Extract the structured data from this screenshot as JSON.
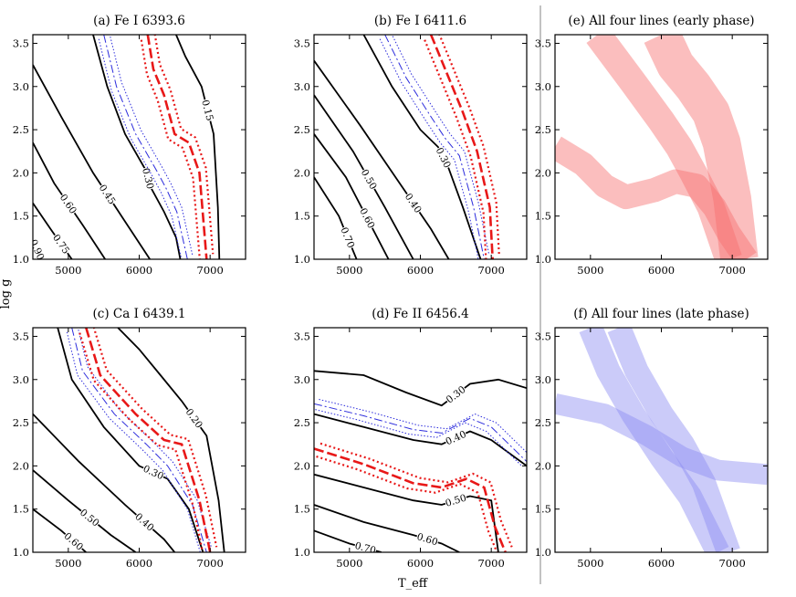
{
  "chart_data": {
    "type": "line",
    "xlabel": "T_eff",
    "ylabel": "log g",
    "xlim": [
      4500,
      7500
    ],
    "ylim": [
      1.0,
      3.6
    ],
    "x_ticks": [
      "5000",
      "6000",
      "7000"
    ],
    "y_ticks": [
      "1.0",
      "1.5",
      "2.0",
      "2.5",
      "3.0",
      "3.5"
    ],
    "panels": [
      {
        "id": "a",
        "title": "(a) Fe I 6393.6",
        "contours": [
          {
            "label": "0.90",
            "pts": [
              [
                4500,
                1.22
              ],
              [
                4620,
                1.0
              ]
            ]
          },
          {
            "label": "0.75",
            "pts": [
              [
                4500,
                1.65
              ],
              [
                4750,
                1.35
              ],
              [
                5050,
                1.0
              ]
            ]
          },
          {
            "label": "0.60",
            "pts": [
              [
                4500,
                2.35
              ],
              [
                4800,
                1.88
              ],
              [
                5200,
                1.4
              ],
              [
                5520,
                1.0
              ]
            ]
          },
          {
            "label": "0.45",
            "pts": [
              [
                4500,
                3.25
              ],
              [
                4900,
                2.65
              ],
              [
                5350,
                2.0
              ],
              [
                5750,
                1.5
              ],
              [
                6150,
                1.0
              ]
            ]
          },
          {
            "label": "0.30",
            "pts": [
              [
                5350,
                3.6
              ],
              [
                5550,
                3.0
              ],
              [
                5800,
                2.45
              ],
              [
                6100,
                2.02
              ],
              [
                6150,
                1.85
              ],
              [
                6350,
                1.55
              ],
              [
                6520,
                1.25
              ],
              [
                6580,
                1.0
              ]
            ]
          },
          {
            "label": "0.15",
            "pts": [
              [
                6520,
                3.6
              ],
              [
                6650,
                3.35
              ],
              [
                6880,
                3.0
              ],
              [
                7050,
                2.45
              ],
              [
                7110,
                1.6
              ],
              [
                7130,
                1.0
              ]
            ]
          }
        ],
        "blue": [
          {
            "label": "",
            "pts": [
              [
                5500,
                3.6
              ],
              [
                5680,
                3.0
              ],
              [
                5950,
                2.45
              ],
              [
                6250,
                2.02
              ],
              [
                6380,
                1.82
              ],
              [
                6530,
                1.55
              ],
              [
                6680,
                1.0
              ]
            ]
          }
        ],
        "red": [
          {
            "label": "",
            "pts": [
              [
                6120,
                3.6
              ],
              [
                6200,
                3.2
              ],
              [
                6350,
                2.9
              ],
              [
                6500,
                2.45
              ],
              [
                6700,
                2.35
              ],
              [
                6850,
                2.0
              ],
              [
                6950,
                1.0
              ]
            ]
          }
        ]
      },
      {
        "id": "b",
        "title": "(b) Fe I 6411.6",
        "contours": [
          {
            "label": "0.70",
            "pts": [
              [
                4500,
                1.95
              ],
              [
                4850,
                1.5
              ],
              [
                5100,
                1.0
              ]
            ]
          },
          {
            "label": "0.60",
            "pts": [
              [
                4500,
                2.45
              ],
              [
                4950,
                1.95
              ],
              [
                5550,
                1.0
              ]
            ]
          },
          {
            "label": "0.50",
            "pts": [
              [
                4500,
                2.9
              ],
              [
                5050,
                2.25
              ],
              [
                5500,
                1.6
              ],
              [
                5900,
                1.0
              ]
            ]
          },
          {
            "label": "0.40",
            "pts": [
              [
                4500,
                3.3
              ],
              [
                5150,
                2.55
              ],
              [
                5650,
                1.95
              ],
              [
                6150,
                1.35
              ],
              [
                6400,
                1.0
              ]
            ]
          },
          {
            "label": "0.30",
            "pts": [
              [
                5200,
                3.6
              ],
              [
                5600,
                3.0
              ],
              [
                6000,
                2.5
              ],
              [
                6250,
                2.3
              ],
              [
                6400,
                2.05
              ],
              [
                6600,
                1.6
              ],
              [
                6850,
                1.0
              ]
            ]
          }
        ],
        "blue": [
          {
            "label": "",
            "pts": [
              [
                5500,
                3.6
              ],
              [
                5800,
                3.1
              ],
              [
                6150,
                2.65
              ],
              [
                6350,
                2.4
              ],
              [
                6550,
                2.2
              ],
              [
                6750,
                1.6
              ],
              [
                6900,
                1.0
              ]
            ]
          }
        ],
        "red": [
          {
            "label": "",
            "pts": [
              [
                6150,
                3.6
              ],
              [
                6300,
                3.3
              ],
              [
                6450,
                3.0
              ],
              [
                6600,
                2.7
              ],
              [
                6800,
                2.25
              ],
              [
                6980,
                1.6
              ],
              [
                7020,
                1.0
              ]
            ]
          }
        ]
      },
      {
        "id": "c",
        "title": "(c) Ca I 6439.1",
        "contours": [
          {
            "label": "0.60",
            "pts": [
              [
                4500,
                1.5
              ],
              [
                4900,
                1.25
              ],
              [
                5250,
                1.0
              ]
            ]
          },
          {
            "label": "0.50",
            "pts": [
              [
                4500,
                1.95
              ],
              [
                5000,
                1.6
              ],
              [
                5600,
                1.2
              ],
              [
                5950,
                1.0
              ]
            ]
          },
          {
            "label": "0.40",
            "pts": [
              [
                4500,
                2.6
              ],
              [
                5150,
                2.05
              ],
              [
                5800,
                1.55
              ],
              [
                6350,
                1.15
              ],
              [
                6500,
                1.0
              ]
            ]
          },
          {
            "label": "0.30",
            "pts": [
              [
                4850,
                3.6
              ],
              [
                5050,
                3.0
              ],
              [
                5500,
                2.45
              ],
              [
                6000,
                2.0
              ],
              [
                6400,
                1.85
              ],
              [
                6700,
                1.5
              ],
              [
                6900,
                1.0
              ]
            ]
          },
          {
            "label": "0.20",
            "pts": [
              [
                5700,
                3.6
              ],
              [
                6000,
                3.35
              ],
              [
                6300,
                3.05
              ],
              [
                6600,
                2.75
              ],
              [
                6950,
                2.35
              ],
              [
                7120,
                1.6
              ],
              [
                7200,
                1.0
              ]
            ]
          }
        ],
        "blue": [
          {
            "label": "",
            "pts": [
              [
                5050,
                3.6
              ],
              [
                5200,
                3.1
              ],
              [
                5650,
                2.6
              ],
              [
                6100,
                2.25
              ],
              [
                6400,
                2.0
              ],
              [
                6750,
                1.55
              ],
              [
                6950,
                1.0
              ]
            ]
          }
        ],
        "red": [
          {
            "label": "",
            "pts": [
              [
                5250,
                3.6
              ],
              [
                5450,
                3.05
              ],
              [
                5950,
                2.6
              ],
              [
                6350,
                2.3
              ],
              [
                6600,
                2.25
              ],
              [
                6850,
                1.6
              ],
              [
                7000,
                1.0
              ]
            ]
          }
        ]
      },
      {
        "id": "d",
        "title": "(d) Fe II 6456.4",
        "contours": [
          {
            "label": "0.30",
            "pts": [
              [
                4500,
                3.1
              ],
              [
                5200,
                3.05
              ],
              [
                5800,
                2.85
              ],
              [
                6300,
                2.7
              ],
              [
                6700,
                2.95
              ],
              [
                7100,
                3.0
              ],
              [
                7500,
                2.9
              ]
            ]
          },
          {
            "label": "0.40",
            "pts": [
              [
                4500,
                2.6
              ],
              [
                5200,
                2.45
              ],
              [
                5900,
                2.3
              ],
              [
                6300,
                2.25
              ],
              [
                6700,
                2.4
              ],
              [
                7000,
                2.3
              ],
              [
                7500,
                2.0
              ]
            ]
          },
          {
            "label": "0.50",
            "pts": [
              [
                4500,
                1.9
              ],
              [
                5200,
                1.75
              ],
              [
                5900,
                1.6
              ],
              [
                6300,
                1.55
              ],
              [
                6700,
                1.65
              ],
              [
                7000,
                1.6
              ],
              [
                7100,
                1.0
              ]
            ]
          },
          {
            "label": "0.60",
            "pts": [
              [
                4500,
                1.55
              ],
              [
                5200,
                1.35
              ],
              [
                5900,
                1.2
              ],
              [
                6300,
                1.1
              ],
              [
                6550,
                1.0
              ]
            ]
          },
          {
            "label": "0.70",
            "pts": [
              [
                4500,
                1.25
              ],
              [
                5000,
                1.1
              ],
              [
                5450,
                1.0
              ]
            ]
          }
        ],
        "blue": [
          {
            "label": "",
            "pts": [
              [
                4500,
                2.72
              ],
              [
                5200,
                2.58
              ],
              [
                5900,
                2.42
              ],
              [
                6300,
                2.38
              ],
              [
                6700,
                2.55
              ],
              [
                7000,
                2.45
              ],
              [
                7500,
                2.05
              ]
            ]
          }
        ],
        "red": [
          {
            "label": "",
            "pts": [
              [
                4500,
                2.2
              ],
              [
                5200,
                2.02
              ],
              [
                5900,
                1.8
              ],
              [
                6300,
                1.75
              ],
              [
                6650,
                1.85
              ],
              [
                6900,
                1.75
              ],
              [
                7050,
                1.3
              ],
              [
                7200,
                1.0
              ]
            ]
          }
        ]
      }
    ],
    "band_panels": [
      {
        "id": "e",
        "title": "(e) All four lines (early phase)",
        "color": "#f76f6f",
        "bands": [
          {
            "pts": [
              [
                4500,
                2.3
              ],
              [
                4900,
                2.1
              ],
              [
                5200,
                1.85
              ],
              [
                5500,
                1.72
              ],
              [
                5900,
                1.8
              ],
              [
                6200,
                1.9
              ],
              [
                6500,
                1.85
              ],
              [
                6750,
                1.6
              ],
              [
                6950,
                1.3
              ],
              [
                7200,
                1.0
              ]
            ],
            "w": 0.14
          },
          {
            "pts": [
              [
                5100,
                3.6
              ],
              [
                5600,
                3.05
              ],
              [
                6000,
                2.6
              ],
              [
                6250,
                2.3
              ],
              [
                6450,
                2.0
              ],
              [
                6700,
                1.6
              ],
              [
                6950,
                1.0
              ]
            ],
            "w": 0.16
          },
          {
            "pts": [
              [
                6000,
                3.6
              ],
              [
                6200,
                3.25
              ],
              [
                6450,
                3.0
              ],
              [
                6700,
                2.7
              ],
              [
                6850,
                2.35
              ],
              [
                7000,
                1.7
              ],
              [
                7100,
                1.0
              ]
            ],
            "w": 0.22
          }
        ]
      },
      {
        "id": "f",
        "title": "(f) All four lines (late phase)",
        "color": "#8c8cf2",
        "bands": [
          {
            "pts": [
              [
                4500,
                2.72
              ],
              [
                5200,
                2.6
              ],
              [
                5800,
                2.35
              ],
              [
                6300,
                2.1
              ],
              [
                6800,
                1.95
              ],
              [
                7500,
                1.9
              ]
            ],
            "w": 0.12
          },
          {
            "pts": [
              [
                5000,
                3.6
              ],
              [
                5250,
                3.1
              ],
              [
                5600,
                2.6
              ],
              [
                6000,
                2.1
              ],
              [
                6400,
                1.65
              ],
              [
                6800,
                1.0
              ]
            ],
            "w": 0.14
          },
          {
            "pts": [
              [
                5400,
                3.6
              ],
              [
                5650,
                3.1
              ],
              [
                6000,
                2.6
              ],
              [
                6300,
                2.25
              ],
              [
                6600,
                1.8
              ],
              [
                6950,
                1.0
              ]
            ],
            "w": 0.14
          }
        ]
      }
    ]
  }
}
